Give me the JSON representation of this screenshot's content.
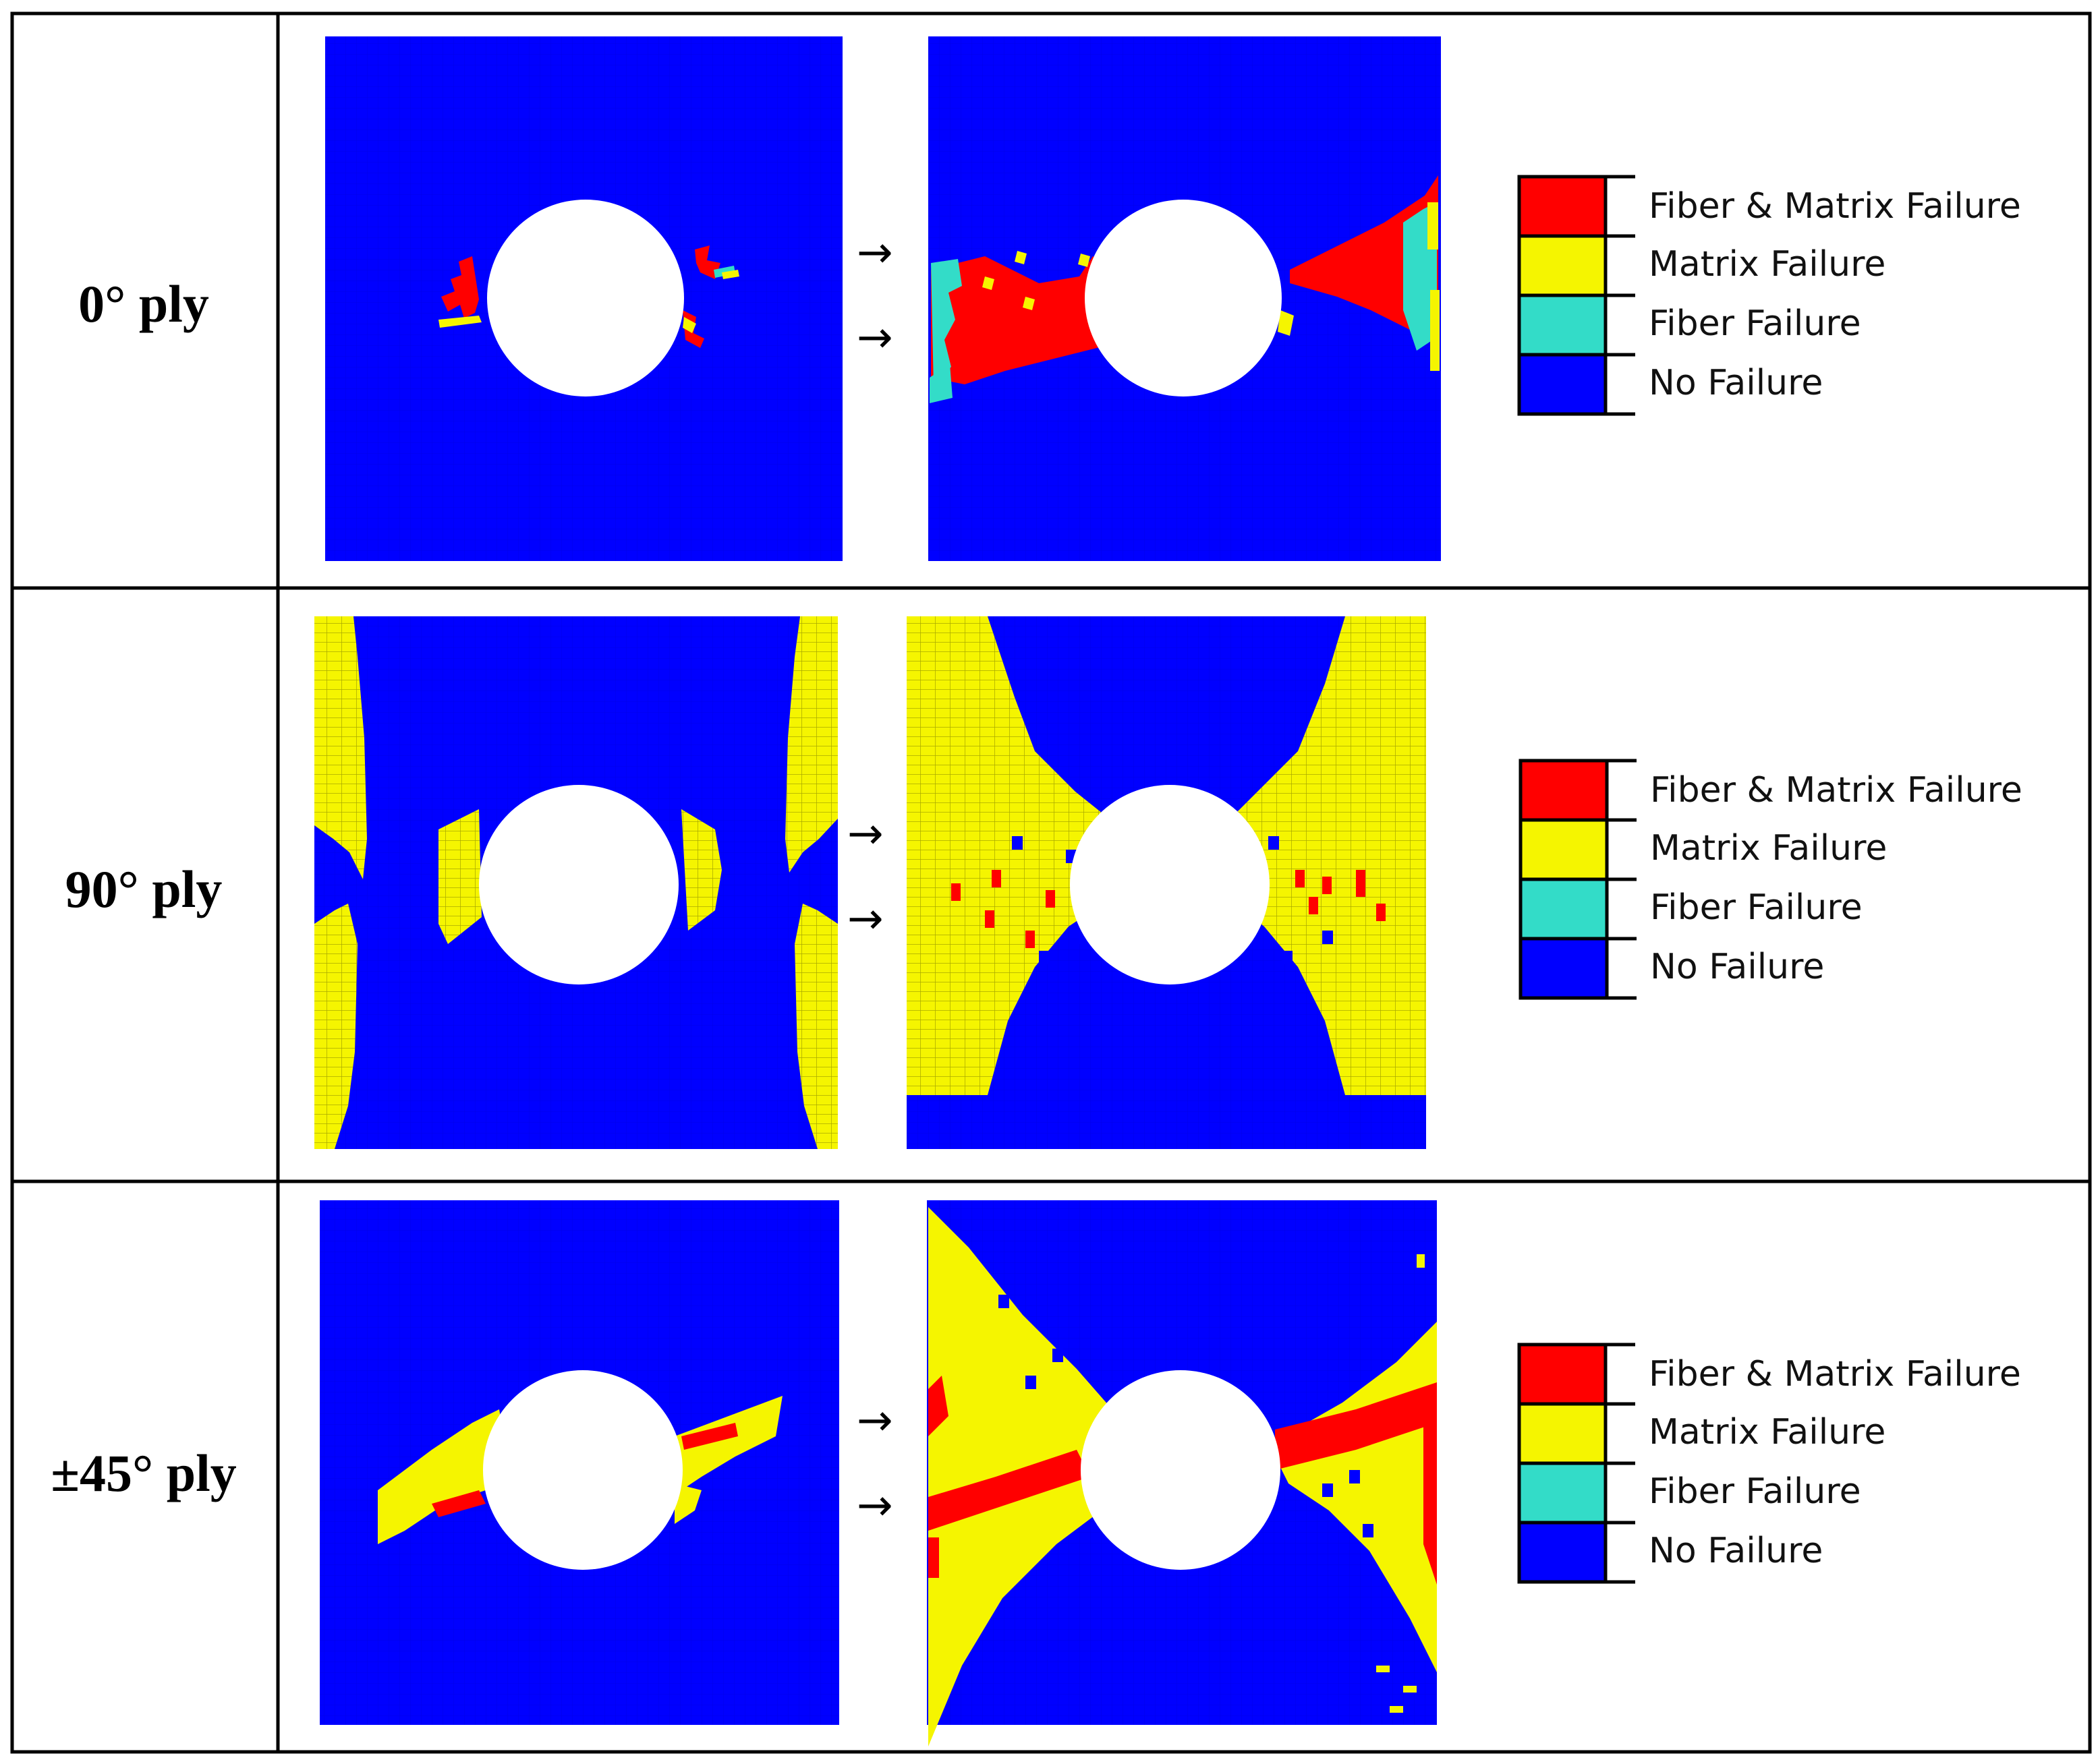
{
  "rows": [
    {
      "label": "0° ply",
      "legend": [
        "Fiber & Matrix Failure",
        "Matrix Failure",
        "Fiber Failure",
        "No Failure"
      ]
    },
    {
      "label": "90° ply",
      "legend": [
        "Fiber & Matrix Failure",
        "Matrix Failure",
        "Fiber Failure",
        "No Failure"
      ]
    },
    {
      "label": "±45° ply",
      "legend": [
        "Fiber & Matrix Failure",
        "Matrix Failure",
        "Fiber Failure",
        "No Failure"
      ]
    }
  ],
  "colors": {
    "fiber_matrix_failure": "#ff0000",
    "matrix_failure": "#f5f500",
    "fiber_failure": "#33dcc8",
    "no_failure": "#0000ff",
    "hole": "#ffffff"
  },
  "arrow_glyph": "→"
}
